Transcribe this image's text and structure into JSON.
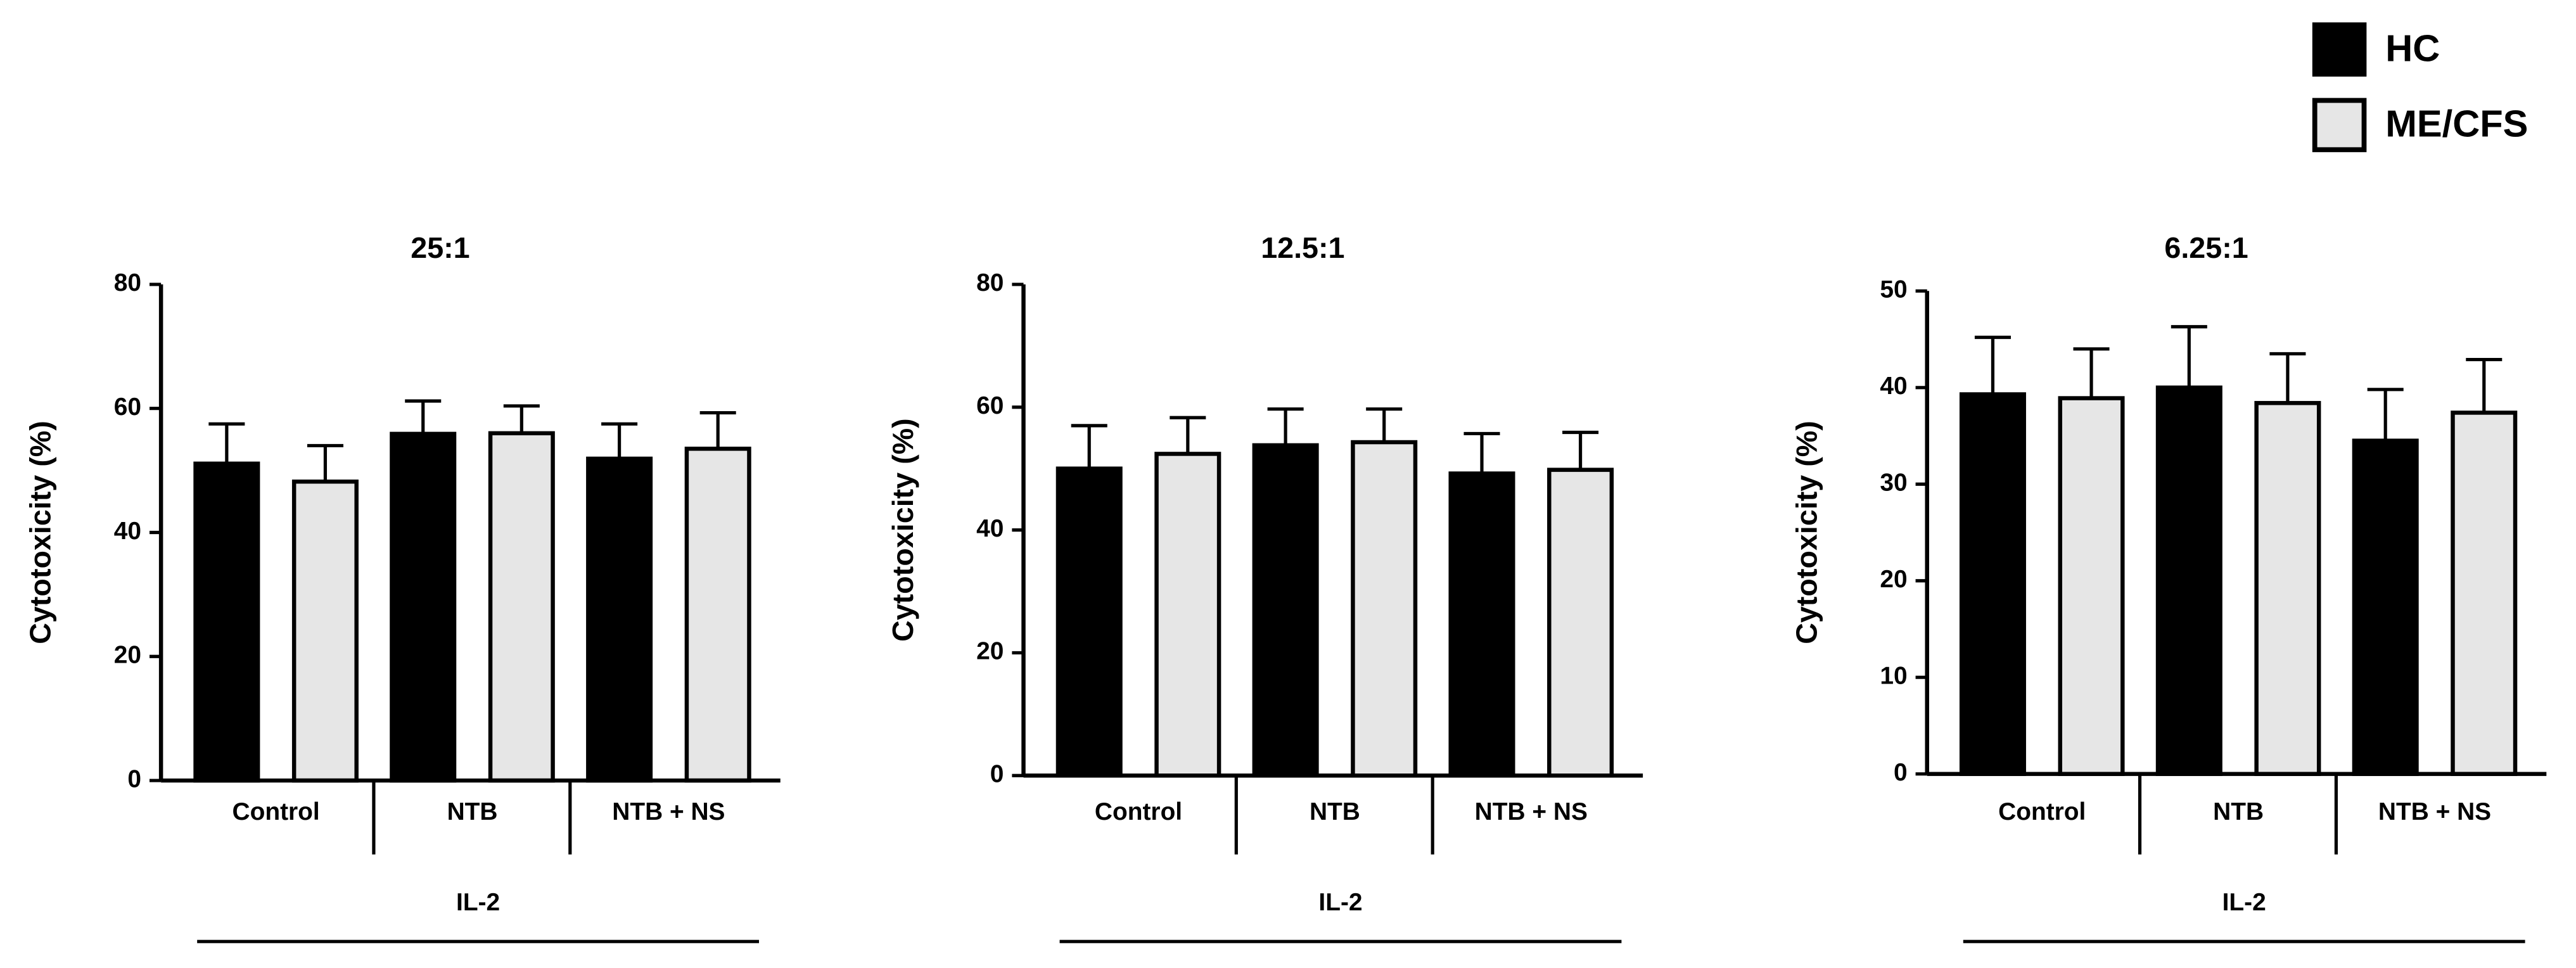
{
  "chart_data": [
    {
      "type": "bar",
      "title": "25:1",
      "y_label": "Cytotoxicity (%)",
      "group_label": "IL-2",
      "categories": [
        "Control",
        "NTB",
        "NTB + NS"
      ],
      "ylim": [
        0,
        80
      ],
      "yticks": [
        0,
        20,
        40,
        60,
        80
      ],
      "series": [
        {
          "name": "HC",
          "color": "#000000",
          "values": [
            51.1,
            55.9,
            51.9
          ],
          "errors": [
            6.4,
            5.3,
            5.6
          ]
        },
        {
          "name": "ME/CFS",
          "color": "#e6e6e6",
          "values": [
            48.2,
            56,
            53.5
          ],
          "errors": [
            5.8,
            4.4,
            5.8
          ]
        }
      ]
    },
    {
      "type": "bar",
      "title": "12.5:1",
      "y_label": "Cytotoxicity (%)",
      "group_label": "IL-2",
      "categories": [
        "Control",
        "NTB",
        "NTB + NS"
      ],
      "ylim": [
        0,
        80
      ],
      "yticks": [
        0,
        20,
        40,
        60,
        80
      ],
      "series": [
        {
          "color": "#000000",
          "values": [
            50,
            53.8,
            49.2
          ],
          "errors": [
            7,
            5.9,
            6.5
          ]
        },
        {
          "color": "#e6e6e6",
          "values": [
            52.4,
            54.3,
            49.8
          ],
          "errors": [
            5.9,
            5.4,
            6.1
          ]
        }
      ]
    },
    {
      "type": "bar",
      "title": "6.25:1",
      "y_label": "Cytotoxicity (%)",
      "group_label": "IL-2",
      "categories": [
        "Control",
        "NTB",
        "NTB + NS"
      ],
      "ylim": [
        0,
        50
      ],
      "yticks": [
        0,
        10,
        20,
        30,
        40,
        50
      ],
      "series": [
        {
          "color": "#000000",
          "values": [
            39.3,
            40,
            34.5
          ],
          "errors": [
            5.9,
            6.3,
            5.3
          ]
        },
        {
          "color": "#e6e6e6",
          "values": [
            38.9,
            38.4,
            37.4
          ],
          "errors": [
            5.1,
            5.1,
            5.5
          ]
        }
      ]
    }
  ]
}
